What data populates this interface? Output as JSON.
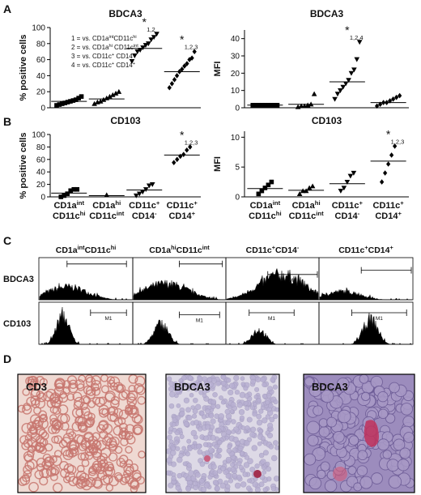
{
  "panel_labels": [
    "A",
    "B",
    "C",
    "D"
  ],
  "legend": [
    [
      {
        "text": "1 = vs. CD1a"
      },
      {
        "text": "int",
        "sup": true
      },
      {
        "text": "CD11c"
      },
      {
        "text": "hi",
        "sup": true
      }
    ],
    [
      {
        "text": "2 = vs. CD1a"
      },
      {
        "text": "hi",
        "sup": true
      },
      {
        "text": " CD11c"
      },
      {
        "text": "int",
        "sup": true
      }
    ],
    [
      {
        "text": "3 = vs. CD11c"
      },
      {
        "text": "+",
        "sup": true
      },
      {
        "text": " CD14"
      },
      {
        "text": "-",
        "sup": true
      }
    ],
    [
      {
        "text": "4 = vs. CD11c"
      },
      {
        "text": "+",
        "sup": true
      },
      {
        "text": " CD14"
      },
      {
        "text": "+",
        "sup": true
      }
    ]
  ],
  "chart_data": [
    {
      "type": "dot",
      "title": "BDCA3",
      "ylabel": "% positive cells",
      "ylim": [
        0,
        100
      ],
      "yticks": [
        0,
        20,
        40,
        60,
        80,
        100
      ],
      "categories": [
        null,
        null,
        null,
        null
      ],
      "markers": [
        "square",
        "triangle",
        "triangle-down",
        "diamond"
      ],
      "color": "#000000",
      "values": [
        [
          3,
          4,
          5,
          6,
          7,
          8,
          9,
          10,
          12,
          14
        ],
        [
          5,
          7,
          8,
          10,
          12,
          14,
          16,
          18,
          20
        ],
        [
          58,
          65,
          70,
          72,
          75,
          78,
          80,
          85,
          88,
          92
        ],
        [
          25,
          30,
          35,
          40,
          45,
          48,
          52,
          55,
          60,
          62,
          70
        ]
      ],
      "medians": [
        8,
        11,
        74,
        45
      ],
      "annotations": [
        {
          "category": 2,
          "star": "*",
          "text": "1,2"
        },
        {
          "category": 3,
          "star": "*",
          "text": "1,2,3"
        }
      ]
    },
    {
      "type": "dot",
      "title": "BDCA3",
      "ylabel": "MFI",
      "ylim": [
        0,
        45
      ],
      "yticks": [
        0,
        10,
        20,
        30,
        40
      ],
      "categories": [
        null,
        null,
        null,
        null
      ],
      "markers": [
        "square",
        "triangle",
        "triangle-down",
        "diamond"
      ],
      "color": "#000000",
      "values": [
        [
          1.5,
          1.5,
          1.5,
          1.5,
          1.5,
          1.5,
          1.5,
          1.5,
          1.5
        ],
        [
          0.5,
          1,
          1,
          1.5,
          2,
          8
        ],
        [
          5,
          8,
          10,
          12,
          14,
          16,
          20,
          22,
          28,
          38
        ],
        [
          1,
          2,
          3,
          3,
          4,
          5,
          6,
          7
        ]
      ],
      "medians": [
        1.5,
        2,
        15,
        3
      ],
      "annotations": [
        {
          "category": 2,
          "star": "*",
          "text": "1,2,4"
        }
      ]
    },
    {
      "type": "dot",
      "title": "CD103",
      "ylabel": "% positive cells",
      "ylim": [
        0,
        100
      ],
      "yticks": [
        0,
        20,
        40,
        60,
        80,
        100
      ],
      "categories": [
        [
          [
            {
              "text": "CD1a"
            },
            {
              "text": "int",
              "sup": true
            }
          ],
          [
            {
              "text": "CD11c"
            },
            {
              "text": "hi",
              "sup": true
            }
          ]
        ],
        [
          [
            {
              "text": "CD1a"
            },
            {
              "text": "hi",
              "sup": true
            }
          ],
          [
            {
              "text": "CD11c"
            },
            {
              "text": "int",
              "sup": true
            }
          ]
        ],
        [
          [
            {
              "text": "CD11c"
            },
            {
              "text": "+",
              "sup": true
            }
          ],
          [
            {
              "text": "CD14"
            },
            {
              "text": "-",
              "sup": true
            }
          ]
        ],
        [
          [
            {
              "text": "CD11c"
            },
            {
              "text": "+",
              "sup": true
            }
          ],
          [
            {
              "text": "CD14"
            },
            {
              "text": "+",
              "sup": true
            }
          ]
        ]
      ],
      "markers": [
        "square",
        "triangle",
        "triangle-down",
        "diamond"
      ],
      "color": "#000000",
      "values": [
        [
          0,
          2,
          5,
          10,
          12,
          12
        ],
        [
          3
        ],
        [
          2,
          5,
          8,
          12,
          18,
          20
        ],
        [
          55,
          60,
          65,
          68,
          75,
          80
        ]
      ],
      "medians": [
        6,
        2,
        11,
        67
      ],
      "annotations": [
        {
          "category": 3,
          "star": "*",
          "text": "1,2,3"
        }
      ]
    },
    {
      "type": "dot",
      "title": "CD103",
      "ylabel": "MFI",
      "ylim": [
        0,
        11
      ],
      "yticks": [
        0,
        5,
        10
      ],
      "categories": [
        [
          [
            {
              "text": "CD1a"
            },
            {
              "text": "int",
              "sup": true
            }
          ],
          [
            {
              "text": "CD11c"
            },
            {
              "text": "hi",
              "sup": true
            }
          ]
        ],
        [
          [
            {
              "text": "CD1a"
            },
            {
              "text": "hi",
              "sup": true
            }
          ],
          [
            {
              "text": "CD11c"
            },
            {
              "text": "int",
              "sup": true
            }
          ]
        ],
        [
          [
            {
              "text": "CD11c"
            },
            {
              "text": "+",
              "sup": true
            }
          ],
          [
            {
              "text": "CD14"
            },
            {
              "text": "-",
              "sup": true
            }
          ]
        ],
        [
          [
            {
              "text": "CD11c"
            },
            {
              "text": "+",
              "sup": true
            }
          ],
          [
            {
              "text": "CD14"
            },
            {
              "text": "+",
              "sup": true
            }
          ]
        ]
      ],
      "markers": [
        "square",
        "triangle",
        "triangle-down",
        "diamond"
      ],
      "color": "#000000",
      "values": [
        [
          0.5,
          1,
          1.5,
          2,
          2.5
        ],
        [
          0.5,
          1,
          1,
          1.5,
          1.8
        ],
        [
          1,
          1.5,
          2.5,
          3.5,
          4
        ],
        [
          2.5,
          4,
          5.5,
          7,
          8.5
        ]
      ],
      "medians": [
        1.4,
        1.1,
        2.2,
        6
      ],
      "annotations": [
        {
          "category": 3,
          "star": "*",
          "text": "1,2,3"
        }
      ]
    }
  ],
  "histograms": {
    "columns": [
      [
        {
          "text": "CD1a"
        },
        {
          "text": "int",
          "sup": true
        },
        {
          "text": "CD11c"
        },
        {
          "text": "hi",
          "sup": true
        }
      ],
      [
        {
          "text": "CD1a"
        },
        {
          "text": "hi",
          "sup": true
        },
        {
          "text": "CD11c"
        },
        {
          "text": "int",
          "sup": true
        }
      ],
      [
        {
          "text": "CD11c"
        },
        {
          "text": "+",
          "sup": true
        },
        {
          "text": "CD14"
        },
        {
          "text": "-",
          "sup": true
        }
      ],
      [
        {
          "text": "CD11c"
        },
        {
          "text": "+",
          "sup": true
        },
        {
          "text": "CD14"
        },
        {
          "text": "+",
          "sup": true
        }
      ]
    ],
    "rows": [
      "BDCA3",
      "CD103"
    ],
    "gate_label": "M1"
  },
  "images": [
    {
      "label": "CD3"
    },
    {
      "label": "BDCA3"
    },
    {
      "label": "BDCA3"
    }
  ]
}
